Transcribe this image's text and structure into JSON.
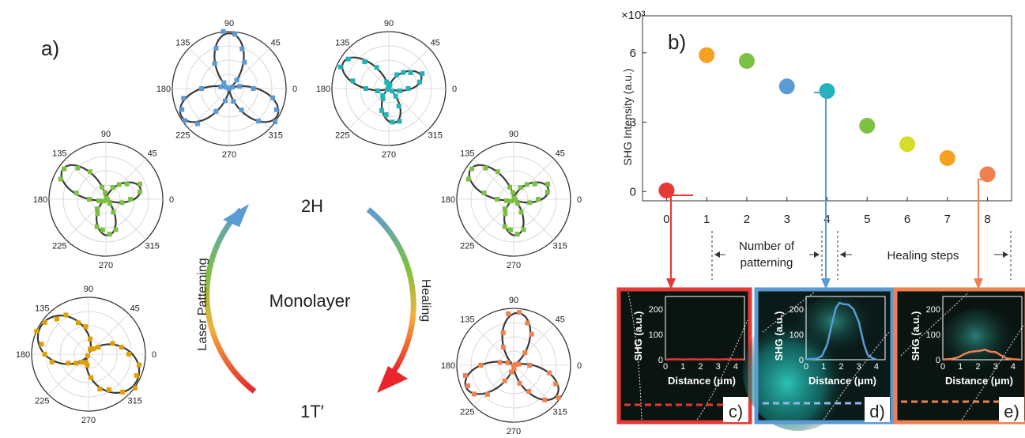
{
  "panel_labels": {
    "a": "a)",
    "b": "b)",
    "c": "c)",
    "d": "d)",
    "e": "e)"
  },
  "cycle": {
    "top": "2H",
    "bottom": "1T′",
    "center": "Monolayer",
    "left_arrow": "Laser Patterning",
    "right_arrow": "Healing"
  },
  "polar_angles": [
    "90",
    "45",
    "0",
    "315",
    "270",
    "225",
    "180",
    "135"
  ],
  "colors": {
    "red": "#e53935",
    "orange": "#f4a124",
    "gold": "#e0a000",
    "green": "#7cc142",
    "blue": "#5b9bd5",
    "teal": "#1fb5b8",
    "yellowgreen": "#d4dd27",
    "salmon": "#f08050",
    "curve": "#3a3a3a",
    "inset_bg": "#0a1410"
  },
  "chart_data": [
    {
      "type": "scatter",
      "title": "",
      "ylabel": "SHG Intensity (a.u.)",
      "y_multiplier": "×10³",
      "xlabel": "",
      "x_ticks": [
        "0",
        "1",
        "2",
        "3",
        "4",
        "5",
        "6",
        "7",
        "8"
      ],
      "y_ticks": [
        "0",
        "3",
        "6"
      ],
      "xlim": [
        -0.6,
        8.6
      ],
      "ylim": [
        -0.4,
        7.6
      ],
      "grid": false,
      "points": [
        {
          "x": 0,
          "y": 0.05,
          "color": "#e53935"
        },
        {
          "x": 1,
          "y": 5.9,
          "color": "#f4a124"
        },
        {
          "x": 2,
          "y": 5.65,
          "color": "#7cc142"
        },
        {
          "x": 3,
          "y": 4.55,
          "color": "#5b9bd5"
        },
        {
          "x": 4,
          "y": 4.35,
          "color": "#1fb5b8"
        },
        {
          "x": 5,
          "y": 2.85,
          "color": "#7cc142"
        },
        {
          "x": 6,
          "y": 2.05,
          "color": "#d4dd27"
        },
        {
          "x": 7,
          "y": 1.45,
          "color": "#f4a124"
        },
        {
          "x": 8,
          "y": 0.75,
          "color": "#f08050"
        }
      ],
      "annotations": {
        "patterning": [
          "Number of",
          "patterning"
        ],
        "healing": "Healing steps"
      }
    },
    {
      "type": "line",
      "panel": "c",
      "ylabel": "SHG (a.u.)",
      "xlabel": "Distance (μm)",
      "x_ticks": [
        "0",
        "1",
        "2",
        "3",
        "4"
      ],
      "y_ticks": [
        "0",
        "100",
        "200"
      ],
      "xlim": [
        0,
        4.5
      ],
      "ylim": [
        0,
        250
      ],
      "series": [
        {
          "color": "#e53935",
          "x": [
            0,
            0.5,
            1,
            1.5,
            2,
            2.5,
            3,
            3.5,
            4,
            4.4
          ],
          "y": [
            1,
            2,
            1,
            2,
            1,
            2,
            1,
            2,
            1,
            2
          ]
        }
      ]
    },
    {
      "type": "line",
      "panel": "d",
      "ylabel": "SHG (a.u.)",
      "xlabel": "Distance (μm)",
      "x_ticks": [
        "0",
        "1",
        "2",
        "3",
        "4"
      ],
      "y_ticks": [
        "0",
        "100",
        "200"
      ],
      "xlim": [
        0,
        4.5
      ],
      "ylim": [
        0,
        250
      ],
      "series": [
        {
          "color": "#5b9bd5",
          "x": [
            0,
            0.6,
            0.9,
            1.2,
            1.5,
            1.7,
            1.9,
            2.1,
            2.4,
            2.7,
            3.0,
            3.3,
            3.5,
            3.8,
            4.0
          ],
          "y": [
            2,
            4,
            15,
            60,
            150,
            205,
            225,
            220,
            218,
            200,
            150,
            60,
            20,
            5,
            2
          ]
        }
      ]
    },
    {
      "type": "line",
      "panel": "e",
      "ylabel": "SHG (a.u.)",
      "xlabel": "Distance (μm)",
      "x_ticks": [
        "0",
        "1",
        "2",
        "3",
        "4"
      ],
      "y_ticks": [
        "0",
        "100",
        "200"
      ],
      "xlim": [
        0,
        4.5
      ],
      "ylim": [
        0,
        250
      ],
      "series": [
        {
          "color": "#f08050",
          "x": [
            0,
            0.5,
            0.9,
            1.2,
            1.5,
            1.8,
            2.1,
            2.4,
            2.7,
            3.0,
            3.3,
            3.6,
            4.0,
            4.4
          ],
          "y": [
            1,
            3,
            10,
            22,
            30,
            33,
            35,
            40,
            32,
            30,
            18,
            6,
            2,
            1
          ]
        }
      ]
    },
    {
      "type": "polar",
      "color": "#5b9bd5",
      "petals": 6,
      "rotation_deg": 90,
      "amplitude": 1.0
    },
    {
      "type": "polar",
      "color": "#1fb5b8",
      "petals": 6,
      "rotation_deg": 150,
      "amplitude": 0.95,
      "ellipticity": 0.5
    },
    {
      "type": "polar",
      "color": "#7cc142",
      "petals": 6,
      "rotation_deg": 145,
      "amplitude": 0.95,
      "ellipticity": 0.45
    },
    {
      "type": "polar",
      "color": "#7cc142",
      "petals": 6,
      "rotation_deg": 145,
      "amplitude": 0.95,
      "ellipticity": 0.45
    },
    {
      "type": "polar",
      "color": "#e0a000",
      "petals": 2,
      "rotation_deg": 150,
      "amplitude": 1.0,
      "ellipticity": 0.15
    },
    {
      "type": "polar",
      "color": "#f08050",
      "petals": 6,
      "rotation_deg": 85,
      "amplitude": 0.95
    }
  ]
}
